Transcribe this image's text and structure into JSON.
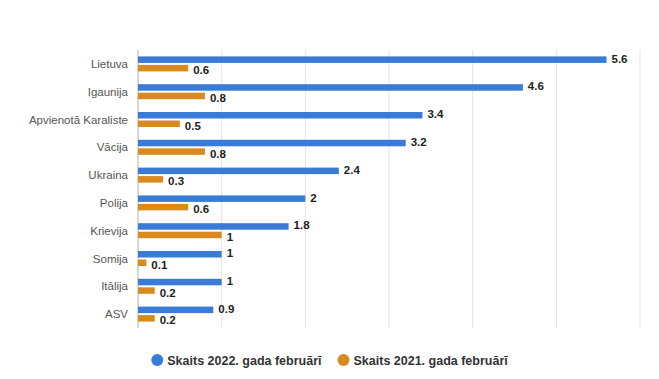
{
  "chart_data": {
    "type": "bar",
    "orientation": "horizontal",
    "categories": [
      "Lietuva",
      "Igaunija",
      "Apvienotā Karaliste",
      "Vācija",
      "Ukraina",
      "Polija",
      "Krievija",
      "Somija",
      "Itālija",
      "ASV"
    ],
    "series": [
      {
        "name": "Skaits 2022. gada februārī",
        "color": "#3a7bd5",
        "values": [
          5.6,
          4.6,
          3.4,
          3.2,
          2.4,
          2,
          1.8,
          1,
          1,
          0.9
        ]
      },
      {
        "name": "Skaits 2021. gada februārī",
        "color": "#d98a1f",
        "values": [
          0.6,
          0.8,
          0.5,
          0.8,
          0.3,
          0.6,
          1,
          0.1,
          0.2,
          0.2
        ]
      }
    ],
    "xlim": [
      0,
      6
    ],
    "xticks": [
      0,
      1,
      2,
      3,
      4,
      5,
      6
    ],
    "grid": true,
    "tick_labels": false,
    "data_labels": true,
    "legend": "bottom"
  }
}
